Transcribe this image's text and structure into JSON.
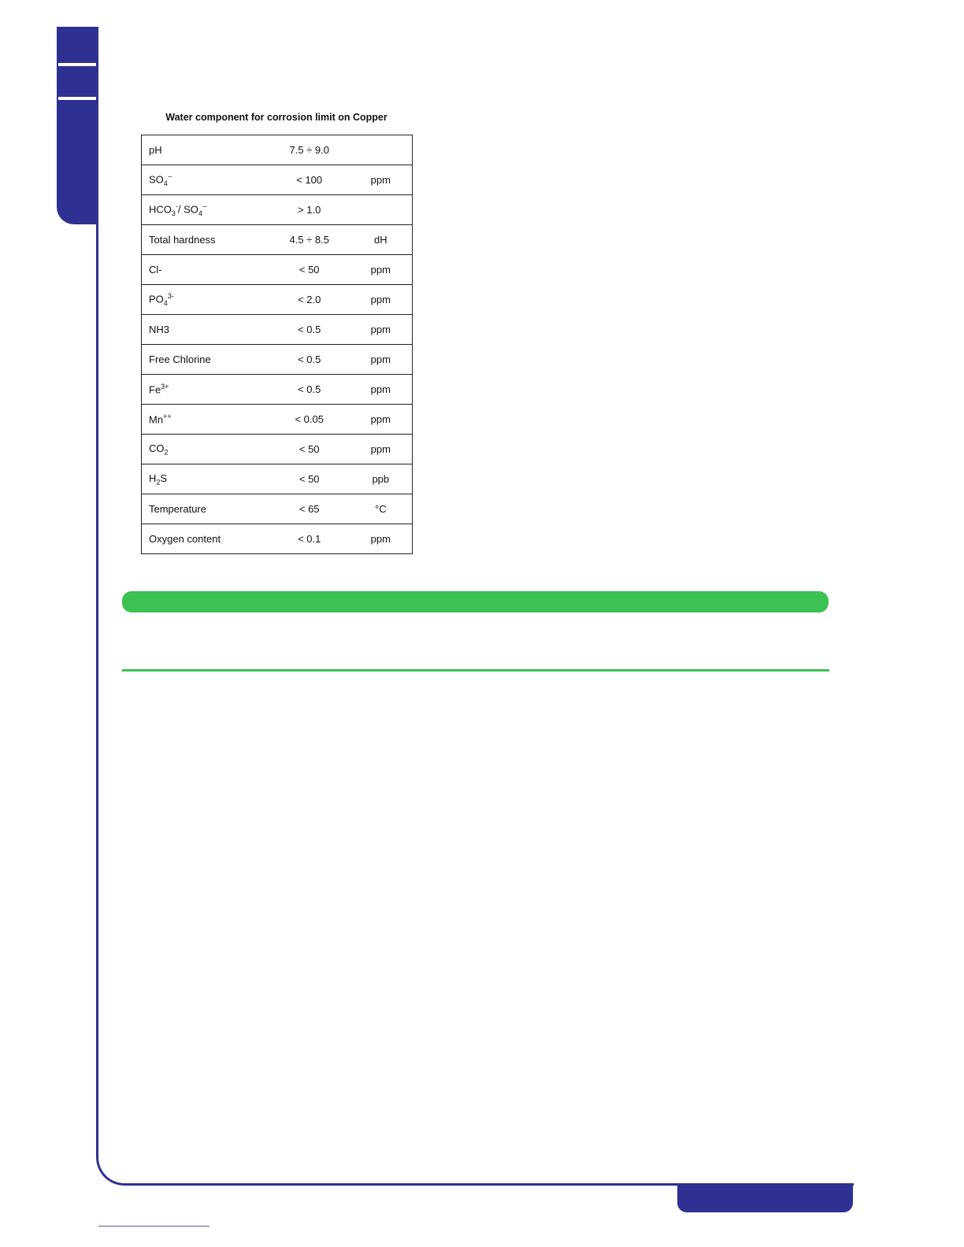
{
  "colors": {
    "brand_blue": "#2e3192",
    "accent_green": "#3cc153"
  },
  "table": {
    "title": "Water component for corrosion limit on Copper",
    "rows": [
      {
        "name": [
          {
            "t": "pH"
          }
        ],
        "value": "7.5 ÷ 9.0",
        "unit": ""
      },
      {
        "name": [
          {
            "t": "SO"
          },
          {
            "t": "4",
            "s": "sub"
          },
          {
            "t": "--",
            "s": "sup"
          }
        ],
        "value": "< 100",
        "unit": "ppm"
      },
      {
        "name": [
          {
            "t": "HCO"
          },
          {
            "t": "3",
            "s": "sub"
          },
          {
            "t": "-",
            "s": "sup"
          },
          {
            "t": "/ SO"
          },
          {
            "t": "4",
            "s": "sub"
          },
          {
            "t": "--",
            "s": "sup"
          }
        ],
        "value": "> 1.0",
        "unit": ""
      },
      {
        "name": [
          {
            "t": "Total hardness"
          }
        ],
        "value": "4.5 ÷ 8.5",
        "unit": "dH"
      },
      {
        "name": [
          {
            "t": "Cl-"
          }
        ],
        "value": "< 50",
        "unit": "ppm"
      },
      {
        "name": [
          {
            "t": "PO"
          },
          {
            "t": "4",
            "s": "sub"
          },
          {
            "t": "3-",
            "s": "sup"
          }
        ],
        "value": "< 2.0",
        "unit": "ppm"
      },
      {
        "name": [
          {
            "t": "NH3"
          }
        ],
        "value": "< 0.5",
        "unit": "ppm"
      },
      {
        "name": [
          {
            "t": "Free Chlorine"
          }
        ],
        "value": "< 0.5",
        "unit": "ppm"
      },
      {
        "name": [
          {
            "t": "Fe"
          },
          {
            "t": "3+",
            "s": "sup"
          }
        ],
        "value": "< 0.5",
        "unit": "ppm"
      },
      {
        "name": [
          {
            "t": "Mn"
          },
          {
            "t": "++",
            "s": "sup"
          }
        ],
        "value": "< 0.05",
        "unit": "ppm"
      },
      {
        "name": [
          {
            "t": "CO"
          },
          {
            "t": "2",
            "s": "sub"
          }
        ],
        "value": "< 50",
        "unit": "ppm"
      },
      {
        "name": [
          {
            "t": "H"
          },
          {
            "t": "2",
            "s": "sub"
          },
          {
            "t": "S"
          }
        ],
        "value": "< 50",
        "unit": "ppb"
      },
      {
        "name": [
          {
            "t": "Temperature"
          }
        ],
        "value": "< 65",
        "unit": "°C"
      },
      {
        "name": [
          {
            "t": "Oxygen content"
          }
        ],
        "value": "< 0.1",
        "unit": "ppm"
      }
    ]
  }
}
